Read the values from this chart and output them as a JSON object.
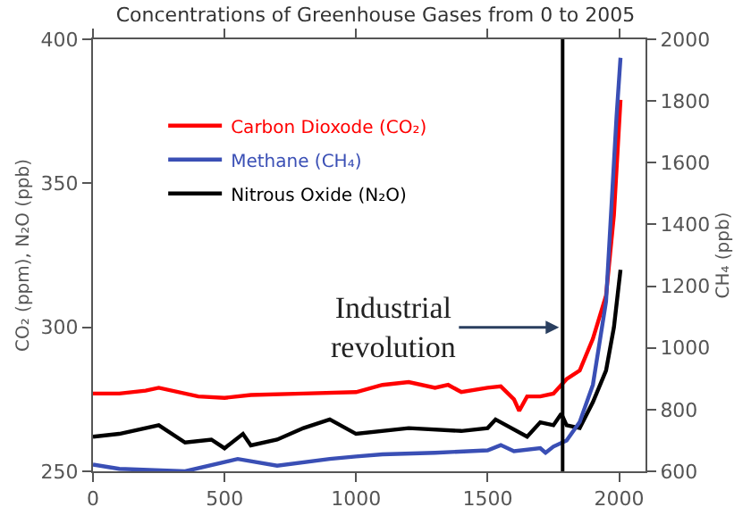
{
  "chart_data": {
    "type": "line",
    "title": "Concentrations of Greenhouse Gases from 0 to 2005",
    "ylabel": "CO₂ (ppm), N₂O (ppb)",
    "y2label": "CH₄ (ppb)",
    "xlim": [
      0,
      2100
    ],
    "xticks": [
      0,
      500,
      1000,
      1500,
      2000
    ],
    "ylim": [
      250,
      400
    ],
    "yticks": [
      250,
      300,
      350,
      400
    ],
    "y2lim": [
      600,
      2000
    ],
    "y2ticks": [
      600,
      800,
      1000,
      1200,
      1400,
      1600,
      1800,
      2000
    ],
    "legend": "top left",
    "marker": "none",
    "line_style": "solid",
    "ref_lines": [
      {
        "axis": "x",
        "value": 1785,
        "label": "Industrial\nrevolution",
        "color": "#000000"
      }
    ],
    "series": [
      {
        "name": "Carbon Dioxode (CO₂)",
        "color": "#ff0000",
        "x": [
          0,
          100,
          200,
          250,
          400,
          500,
          600,
          800,
          1000,
          1100,
          1200,
          1300,
          1350,
          1400,
          1500,
          1550,
          1600,
          1620,
          1650,
          1700,
          1750,
          1800,
          1850,
          1900,
          1950,
          1980,
          2005
        ],
        "values": [
          277,
          277,
          278,
          279,
          276,
          275.5,
          276.5,
          277,
          277.5,
          280,
          281,
          279,
          280,
          277.5,
          279,
          279.5,
          275,
          271,
          276,
          276,
          277,
          282,
          285,
          296,
          311,
          339,
          379
        ]
      },
      {
        "name": "Methane (CH₄)",
        "color": "#3a4fb5",
        "axis": "y2",
        "x": [
          0,
          100,
          350,
          550,
          700,
          900,
          1000,
          1100,
          1300,
          1500,
          1550,
          1600,
          1700,
          1720,
          1750,
          1800,
          1850,
          1900,
          1950,
          1980,
          1990,
          2005
        ],
        "values": [
          622,
          608,
          600,
          640,
          618,
          640,
          648,
          655,
          660,
          668,
          685,
          665,
          675,
          660,
          680,
          700,
          760,
          880,
          1150,
          1600,
          1750,
          1940
        ]
      },
      {
        "name": "Nitrous Oxide (N₂O)",
        "color": "#000000",
        "x": [
          0,
          100,
          250,
          350,
          450,
          500,
          570,
          600,
          700,
          800,
          900,
          1000,
          1200,
          1400,
          1500,
          1530,
          1650,
          1700,
          1750,
          1780,
          1800,
          1850,
          1900,
          1950,
          1980,
          2005
        ],
        "values": [
          262,
          263,
          266,
          260,
          261,
          258,
          263,
          259,
          261,
          265,
          268,
          263,
          265,
          264,
          265,
          268,
          262,
          267,
          266,
          270,
          266,
          265,
          274,
          285,
          300,
          320
        ]
      }
    ]
  }
}
